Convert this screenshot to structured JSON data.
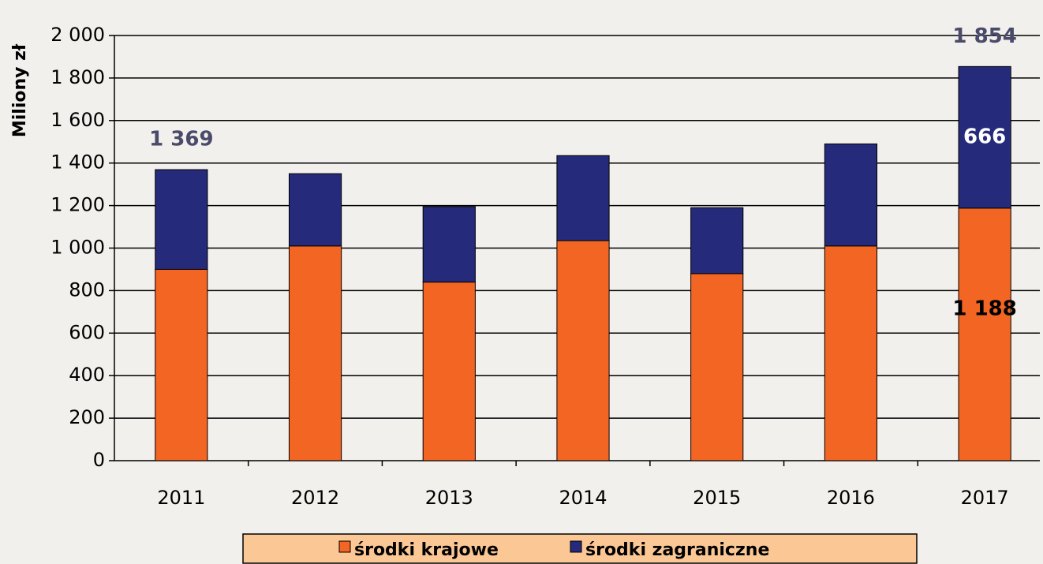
{
  "chart_data": {
    "type": "stacked_bar",
    "y_label": "Miliony zł",
    "categories": [
      "2011",
      "2012",
      "2013",
      "2014",
      "2015",
      "2016",
      "2017"
    ],
    "series": [
      {
        "name": "środki krajowe",
        "color": "#f26522",
        "values": [
          900,
          1010,
          840,
          1035,
          880,
          1010,
          1188
        ],
        "value_labels": [
          null,
          null,
          null,
          null,
          null,
          null,
          "1 188"
        ]
      },
      {
        "name": "środki zagraniczne",
        "color": "#252a7a",
        "values": [
          469,
          340,
          355,
          400,
          310,
          480,
          666
        ],
        "value_labels": [
          null,
          null,
          null,
          null,
          null,
          null,
          "666"
        ]
      }
    ],
    "totals": [
      1369,
      null,
      null,
      null,
      null,
      null,
      1854
    ],
    "total_labels": [
      "1 369",
      null,
      null,
      null,
      null,
      null,
      "1 854"
    ],
    "ylim": [
      0,
      2000
    ],
    "yticks": [
      0,
      200,
      400,
      600,
      800,
      {
        "value": 1000,
        "label": "1 000"
      },
      {
        "value": 1200,
        "label": "1 200"
      },
      {
        "value": 1400,
        "label": "1 400"
      },
      {
        "value": 1600,
        "label": "1 600"
      },
      {
        "value": 1800,
        "label": "1 800"
      },
      {
        "value": 2000,
        "label": "2 000"
      }
    ],
    "grid": true,
    "legend": "bottom"
  }
}
